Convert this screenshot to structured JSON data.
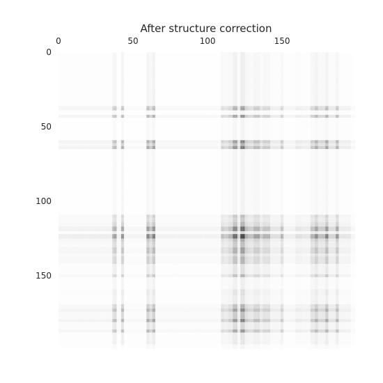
{
  "chart_data": {
    "type": "heatmap",
    "title": "After structure correction",
    "xlabel": "",
    "ylabel": "",
    "rows": 199,
    "cols": 199,
    "xlim": [
      0,
      199
    ],
    "ylim": [
      0,
      199
    ],
    "x_ticks": [
      0,
      50,
      100,
      150
    ],
    "y_ticks": [
      0,
      50,
      100,
      150
    ],
    "x_tick_position": "top",
    "y_axis_inverted": true,
    "colormap": "greys",
    "color_low": "#ffffff",
    "color_high": "#000000",
    "grid": false,
    "legend": "none",
    "value_range": [
      0,
      1
    ],
    "structure": "rank-one pattern: cell value = row_weight[i] * col_weight[j]; the matrix is symmetric so rows and columns share the same weights",
    "index_weights": [
      {
        "range": [
          0,
          35
        ],
        "value": 0.08
      },
      {
        "range": [
          36,
          36
        ],
        "value": 0.35
      },
      {
        "range": [
          37,
          38
        ],
        "value": 0.45
      },
      {
        "range": [
          39,
          41
        ],
        "value": 0.06
      },
      {
        "range": [
          42,
          43
        ],
        "value": 0.5
      },
      {
        "range": [
          44,
          58
        ],
        "value": 0.05
      },
      {
        "range": [
          59,
          60
        ],
        "value": 0.55
      },
      {
        "range": [
          61,
          62
        ],
        "value": 0.35
      },
      {
        "range": [
          63,
          64
        ],
        "value": 0.6
      },
      {
        "range": [
          65,
          108
        ],
        "value": 0.06
      },
      {
        "range": [
          109,
          110
        ],
        "value": 0.3
      },
      {
        "range": [
          111,
          113
        ],
        "value": 0.25
      },
      {
        "range": [
          114,
          116
        ],
        "value": 0.35
      },
      {
        "range": [
          117,
          119
        ],
        "value": 0.7
      },
      {
        "range": [
          120,
          121
        ],
        "value": 0.2
      },
      {
        "range": [
          122,
          124
        ],
        "value": 0.85
      },
      {
        "range": [
          125,
          126
        ],
        "value": 0.4
      },
      {
        "range": [
          127,
          130
        ],
        "value": 0.3
      },
      {
        "range": [
          131,
          134
        ],
        "value": 0.45
      },
      {
        "range": [
          135,
          136
        ],
        "value": 0.25
      },
      {
        "range": [
          137,
          141
        ],
        "value": 0.35
      },
      {
        "range": [
          142,
          148
        ],
        "value": 0.15
      },
      {
        "range": [
          149,
          150
        ],
        "value": 0.35
      },
      {
        "range": [
          151,
          158
        ],
        "value": 0.08
      },
      {
        "range": [
          159,
          162
        ],
        "value": 0.15
      },
      {
        "range": [
          163,
          168
        ],
        "value": 0.12
      },
      {
        "range": [
          169,
          171
        ],
        "value": 0.35
      },
      {
        "range": [
          172,
          173
        ],
        "value": 0.55
      },
      {
        "range": [
          174,
          178
        ],
        "value": 0.3
      },
      {
        "range": [
          179,
          180
        ],
        "value": 0.6
      },
      {
        "range": [
          181,
          185
        ],
        "value": 0.2
      },
      {
        "range": [
          186,
          187
        ],
        "value": 0.5
      },
      {
        "range": [
          188,
          195
        ],
        "value": 0.12
      },
      {
        "range": [
          196,
          198
        ],
        "value": 0.05
      }
    ]
  }
}
